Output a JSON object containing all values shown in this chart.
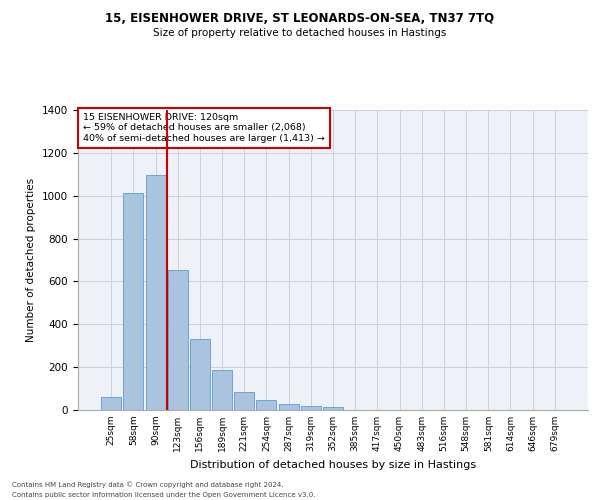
{
  "title1": "15, EISENHOWER DRIVE, ST LEONARDS-ON-SEA, TN37 7TQ",
  "title2": "Size of property relative to detached houses in Hastings",
  "xlabel": "Distribution of detached houses by size in Hastings",
  "ylabel": "Number of detached properties",
  "footer1": "Contains HM Land Registry data © Crown copyright and database right 2024.",
  "footer2": "Contains public sector information licensed under the Open Government Licence v3.0.",
  "annotation_line1": "15 EISENHOWER DRIVE: 120sqm",
  "annotation_line2": "← 59% of detached houses are smaller (2,068)",
  "annotation_line3": "40% of semi-detached houses are larger (1,413) →",
  "property_sqm": 120,
  "bar_categories": [
    "25sqm",
    "58sqm",
    "90sqm",
    "123sqm",
    "156sqm",
    "189sqm",
    "221sqm",
    "254sqm",
    "287sqm",
    "319sqm",
    "352sqm",
    "385sqm",
    "417sqm",
    "450sqm",
    "483sqm",
    "516sqm",
    "548sqm",
    "581sqm",
    "614sqm",
    "646sqm",
    "679sqm"
  ],
  "bar_values": [
    62,
    1015,
    1095,
    655,
    330,
    185,
    85,
    45,
    27,
    20,
    15,
    0,
    0,
    0,
    0,
    0,
    0,
    0,
    0,
    0,
    0
  ],
  "bar_color": "#aac4e0",
  "bar_edge_color": "#5b9bd5",
  "vline_color": "#cc0000",
  "vline_x_idx": 2,
  "annotation_box_color": "#cc0000",
  "grid_color": "#c8d0dc",
  "bg_color": "#eef2f8",
  "ylim": [
    0,
    1400
  ],
  "yticks": [
    0,
    200,
    400,
    600,
    800,
    1000,
    1200,
    1400
  ]
}
